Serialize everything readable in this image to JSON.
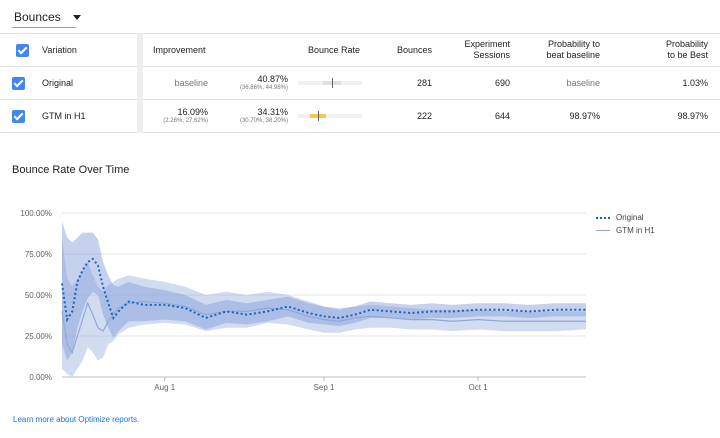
{
  "metric_selector": {
    "label": "Bounces",
    "icon": "caret-down-icon"
  },
  "table": {
    "headers": {
      "variation": "Variation",
      "improvement": "Improvement",
      "bounce_rate": "Bounce Rate",
      "bounces": "Bounces",
      "sessions_l1": "Experiment",
      "sessions_l2": "Sessions",
      "beat_l1": "Probability to",
      "beat_l2": "beat baseline",
      "best_l1": "Probability",
      "best_l2": "to be Best"
    },
    "rows": [
      {
        "name": "Original",
        "improvement": "baseline",
        "improvement_range": "",
        "rate": "40.87%",
        "rate_range": "(36.86%, 44.98%)",
        "bar": {
          "min": 0.3686,
          "max": 0.4498,
          "point": 0.4087,
          "color": "#e0e0e0"
        },
        "bounces": "281",
        "sessions": "690",
        "beat": "baseline",
        "best": "1.03%"
      },
      {
        "name": "GTM in H1",
        "improvement": "16.09%",
        "improvement_range": "(2.26%, 27.62%)",
        "rate": "34.31%",
        "rate_range": "(30.70%, 38.20%)",
        "bar": {
          "min": 0.307,
          "max": 0.382,
          "point": 0.3431,
          "color": "#f2c94c"
        },
        "bounces": "222",
        "sessions": "644",
        "beat": "98.97%",
        "best": "98.97%"
      }
    ]
  },
  "chart_title": "Bounce Rate Over Time",
  "chart_data": {
    "type": "line",
    "title": "Bounce Rate Over Time",
    "y_ticks": [
      "100.00%",
      "75.00%",
      "50.00%",
      "25.00%",
      "0.00%"
    ],
    "ylim": [
      0,
      100
    ],
    "x_range": [
      "2019-07-12",
      "2019-10-22"
    ],
    "x_ticks": [
      {
        "date": "2019-08-01",
        "label": "Aug 1"
      },
      {
        "date": "2019-09-01",
        "label": "Sep 1"
      },
      {
        "date": "2019-10-01",
        "label": "Oct 1"
      }
    ],
    "series": [
      {
        "name": "Original",
        "style": "dotted",
        "color": "#1565c0",
        "band_color": "#7e9ad6",
        "points": [
          [
            "2019-07-12",
            57,
            20,
            95
          ],
          [
            "2019-07-13",
            35,
            10,
            85
          ],
          [
            "2019-07-14",
            40,
            15,
            82
          ],
          [
            "2019-07-15",
            58,
            30,
            85
          ],
          [
            "2019-07-16",
            65,
            40,
            88
          ],
          [
            "2019-07-17",
            70,
            48,
            88
          ],
          [
            "2019-07-18",
            72,
            52,
            88
          ],
          [
            "2019-07-19",
            68,
            50,
            84
          ],
          [
            "2019-07-20",
            55,
            38,
            70
          ],
          [
            "2019-07-21",
            45,
            30,
            62
          ],
          [
            "2019-07-22",
            36,
            24,
            56
          ],
          [
            "2019-07-23",
            40,
            28,
            55
          ],
          [
            "2019-07-25",
            46,
            34,
            58
          ],
          [
            "2019-07-28",
            44,
            34,
            55
          ],
          [
            "2019-08-01",
            44,
            35,
            53
          ],
          [
            "2019-08-05",
            42,
            34,
            50
          ],
          [
            "2019-08-09",
            36,
            29,
            44
          ],
          [
            "2019-08-13",
            40,
            33,
            47
          ],
          [
            "2019-08-17",
            38,
            32,
            45
          ],
          [
            "2019-08-21",
            40,
            34,
            47
          ],
          [
            "2019-08-25",
            43,
            37,
            49
          ],
          [
            "2019-08-29",
            39,
            33,
            45
          ],
          [
            "2019-09-01",
            37,
            32,
            43
          ],
          [
            "2019-09-04",
            36,
            31,
            41
          ],
          [
            "2019-09-07",
            38,
            33,
            43
          ],
          [
            "2019-09-10",
            41,
            36,
            46
          ],
          [
            "2019-09-14",
            40,
            36,
            45
          ],
          [
            "2019-09-18",
            39,
            35,
            44
          ],
          [
            "2019-09-22",
            40,
            36,
            45
          ],
          [
            "2019-09-26",
            40,
            36,
            44
          ],
          [
            "2019-10-01",
            41,
            37,
            45
          ],
          [
            "2019-10-06",
            41,
            37,
            45
          ],
          [
            "2019-10-11",
            40,
            36,
            44
          ],
          [
            "2019-10-16",
            41,
            37,
            45
          ],
          [
            "2019-10-22",
            41,
            37,
            45
          ]
        ]
      },
      {
        "name": "GTM in H1",
        "style": "solid",
        "color": "#90a8d8",
        "band_color": "#7e9ad6",
        "points": [
          [
            "2019-07-12",
            40,
            5,
            85
          ],
          [
            "2019-07-13",
            20,
            2,
            60
          ],
          [
            "2019-07-14",
            15,
            0,
            55
          ],
          [
            "2019-07-15",
            25,
            5,
            60
          ],
          [
            "2019-07-16",
            35,
            10,
            65
          ],
          [
            "2019-07-17",
            45,
            18,
            70
          ],
          [
            "2019-07-18",
            38,
            15,
            62
          ],
          [
            "2019-07-19",
            30,
            10,
            55
          ],
          [
            "2019-07-20",
            28,
            12,
            52
          ],
          [
            "2019-07-21",
            34,
            20,
            56
          ],
          [
            "2019-07-22",
            38,
            22,
            58
          ],
          [
            "2019-07-23",
            42,
            26,
            60
          ],
          [
            "2019-07-25",
            45,
            30,
            62
          ],
          [
            "2019-07-28",
            46,
            32,
            60
          ],
          [
            "2019-08-01",
            45,
            33,
            58
          ],
          [
            "2019-08-05",
            43,
            32,
            55
          ],
          [
            "2019-08-09",
            38,
            28,
            50
          ],
          [
            "2019-08-13",
            40,
            30,
            52
          ],
          [
            "2019-08-17",
            40,
            30,
            50
          ],
          [
            "2019-08-21",
            42,
            33,
            52
          ],
          [
            "2019-08-25",
            41,
            32,
            50
          ],
          [
            "2019-08-29",
            37,
            29,
            46
          ],
          [
            "2019-09-01",
            35,
            27,
            43
          ],
          [
            "2019-09-04",
            34,
            27,
            42
          ],
          [
            "2019-09-07",
            36,
            29,
            43
          ],
          [
            "2019-09-10",
            37,
            30,
            44
          ],
          [
            "2019-09-14",
            36,
            30,
            43
          ],
          [
            "2019-09-18",
            35,
            29,
            42
          ],
          [
            "2019-09-22",
            35,
            29,
            41
          ],
          [
            "2019-09-26",
            34,
            28,
            41
          ],
          [
            "2019-10-01",
            35,
            29,
            41
          ],
          [
            "2019-10-06",
            34,
            28,
            40
          ],
          [
            "2019-10-11",
            34,
            28,
            40
          ],
          [
            "2019-10-16",
            34,
            28,
            40
          ],
          [
            "2019-10-22",
            34,
            29,
            40
          ]
        ]
      }
    ]
  },
  "legend": {
    "original": "Original",
    "gtm": "GTM in H1"
  },
  "footer_link": "Learn more about Optimize reports."
}
